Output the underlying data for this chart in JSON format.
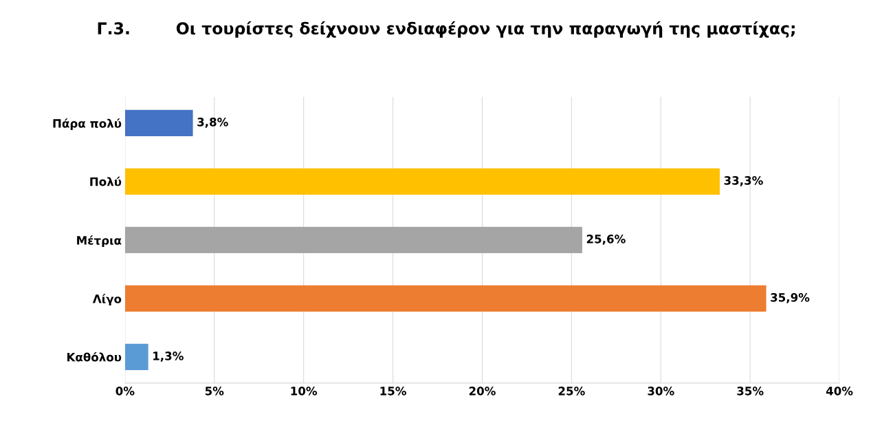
{
  "chart_data": {
    "type": "bar",
    "orientation": "horizontal",
    "title": "Γ.3.        Οι τουρίστες δείχνουν ενδιαφέρον για την παραγωγή της μαστίχας;",
    "categories": [
      "Πάρα πολύ",
      "Πολύ",
      "Μέτρια",
      "Λίγο",
      "Καθόλου"
    ],
    "values": [
      3.8,
      33.3,
      25.6,
      35.9,
      1.3
    ],
    "colors": [
      "#4472c4",
      "#ffc000",
      "#a5a5a5",
      "#ed7d31",
      "#5b9bd5"
    ],
    "value_labels": [
      "3,8%",
      "33,3%",
      "25,6%",
      "35,9%",
      "1,3%"
    ],
    "xlim": [
      0,
      40
    ],
    "xticks": [
      {
        "value": 0,
        "label": "0%"
      },
      {
        "value": 5,
        "label": "5%"
      },
      {
        "value": 10,
        "label": "10%"
      },
      {
        "value": 15,
        "label": "15%"
      },
      {
        "value": 20,
        "label": "20%"
      },
      {
        "value": 25,
        "label": "25%"
      },
      {
        "value": 30,
        "label": "30%"
      },
      {
        "value": 35,
        "label": "35%"
      },
      {
        "value": 40,
        "label": "40%"
      }
    ],
    "grid": "x",
    "legend": false
  }
}
